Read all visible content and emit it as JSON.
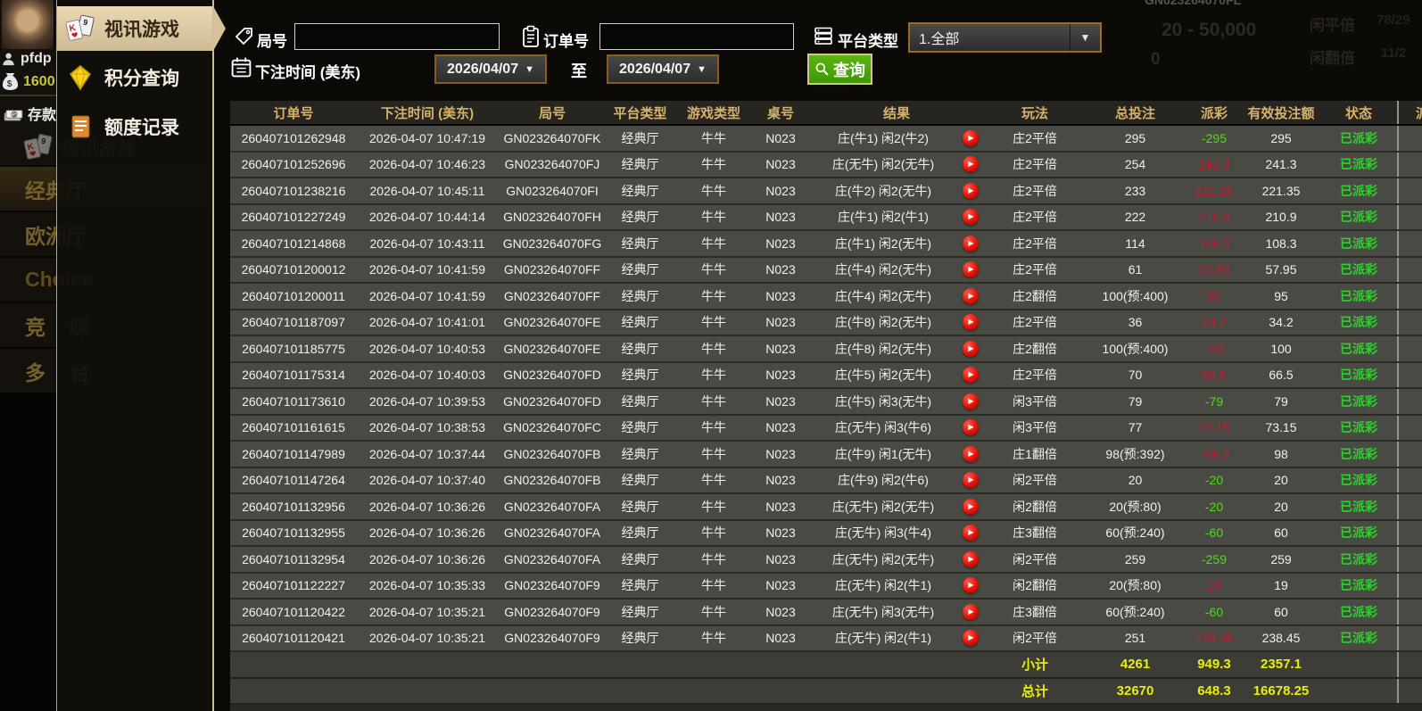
{
  "sidebar": {
    "username": "pfdp",
    "balance": "1600",
    "deposit_label": "存款",
    "video_game_label": "视讯游戏",
    "halls": [
      "经典厅",
      "欧洲厅",
      "Choice",
      "竞咪",
      "多台"
    ]
  },
  "menu": {
    "items": [
      {
        "label": "视讯游戏",
        "icon": "cards",
        "active": true
      },
      {
        "label": "积分查询",
        "icon": "diamond",
        "active": false
      },
      {
        "label": "额度记录",
        "icon": "document",
        "active": false
      }
    ]
  },
  "filters": {
    "round_label": "局号",
    "round_value": "",
    "order_label": "订单号",
    "order_value": "",
    "platform_label": "平台类型",
    "platform_value": "1.全部",
    "bet_time_label": "下注时间 (美东)",
    "date_from": "2026/04/07",
    "date_to": "2026/04/07",
    "to_label": "至",
    "query_label": "查询",
    "dropdown_arrow": "▼"
  },
  "background_hints": {
    "top_round_id": "GN023264070FL",
    "limit_text": "20 - 50,000",
    "zero_text": "0",
    "side_label_1": "闲平倍",
    "side_value_1": "78/29",
    "side_label_2": "闲翻倍",
    "side_value_2": "11/2"
  },
  "table": {
    "headers": [
      "订单号",
      "下注时间 (美东)",
      "局号",
      "平台类型",
      "游戏类型",
      "桌号",
      "结果",
      "玩法",
      "总投注",
      "派彩",
      "有效投注额",
      "状态",
      "派"
    ],
    "rows": [
      {
        "order_id": "260407101262948",
        "bet_time": "2026-04-07 10:47:19",
        "round_id": "GN023264070FK",
        "platform": "经典厅",
        "game_type": "牛牛",
        "table_no": "N023",
        "result": "庄(牛1) 闲2(牛2)",
        "play_method": "庄2平倍",
        "total_bet": "295",
        "payout": "-295",
        "valid_bet": "295",
        "status": "已派彩"
      },
      {
        "order_id": "260407101252696",
        "bet_time": "2026-04-07 10:46:23",
        "round_id": "GN023264070FJ",
        "platform": "经典厅",
        "game_type": "牛牛",
        "table_no": "N023",
        "result": "庄(无牛) 闲2(无牛)",
        "play_method": "庄2平倍",
        "total_bet": "254",
        "payout": "241.3",
        "valid_bet": "241.3",
        "status": "已派彩"
      },
      {
        "order_id": "260407101238216",
        "bet_time": "2026-04-07 10:45:11",
        "round_id": "GN023264070FI",
        "platform": "经典厅",
        "game_type": "牛牛",
        "table_no": "N023",
        "result": "庄(牛2) 闲2(无牛)",
        "play_method": "庄2平倍",
        "total_bet": "233",
        "payout": "221.35",
        "valid_bet": "221.35",
        "status": "已派彩"
      },
      {
        "order_id": "260407101227249",
        "bet_time": "2026-04-07 10:44:14",
        "round_id": "GN023264070FH",
        "platform": "经典厅",
        "game_type": "牛牛",
        "table_no": "N023",
        "result": "庄(牛1) 闲2(牛1)",
        "play_method": "庄2平倍",
        "total_bet": "222",
        "payout": "210.9",
        "valid_bet": "210.9",
        "status": "已派彩"
      },
      {
        "order_id": "260407101214868",
        "bet_time": "2026-04-07 10:43:11",
        "round_id": "GN023264070FG",
        "platform": "经典厅",
        "game_type": "牛牛",
        "table_no": "N023",
        "result": "庄(牛1) 闲2(无牛)",
        "play_method": "庄2平倍",
        "total_bet": "114",
        "payout": "108.3",
        "valid_bet": "108.3",
        "status": "已派彩"
      },
      {
        "order_id": "260407101200012",
        "bet_time": "2026-04-07 10:41:59",
        "round_id": "GN023264070FF",
        "platform": "经典厅",
        "game_type": "牛牛",
        "table_no": "N023",
        "result": "庄(牛4) 闲2(无牛)",
        "play_method": "庄2平倍",
        "total_bet": "61",
        "payout": "57.95",
        "valid_bet": "57.95",
        "status": "已派彩"
      },
      {
        "order_id": "260407101200011",
        "bet_time": "2026-04-07 10:41:59",
        "round_id": "GN023264070FF",
        "platform": "经典厅",
        "game_type": "牛牛",
        "table_no": "N023",
        "result": "庄(牛4) 闲2(无牛)",
        "play_method": "庄2翻倍",
        "total_bet": "100(预:400)",
        "payout": "95",
        "valid_bet": "95",
        "status": "已派彩"
      },
      {
        "order_id": "260407101187097",
        "bet_time": "2026-04-07 10:41:01",
        "round_id": "GN023264070FE",
        "platform": "经典厅",
        "game_type": "牛牛",
        "table_no": "N023",
        "result": "庄(牛8) 闲2(无牛)",
        "play_method": "庄2平倍",
        "total_bet": "36",
        "payout": "34.2",
        "valid_bet": "34.2",
        "status": "已派彩"
      },
      {
        "order_id": "260407101185775",
        "bet_time": "2026-04-07 10:40:53",
        "round_id": "GN023264070FE",
        "platform": "经典厅",
        "game_type": "牛牛",
        "table_no": "N023",
        "result": "庄(牛8) 闲2(无牛)",
        "play_method": "庄2翻倍",
        "total_bet": "100(预:400)",
        "payout": "190",
        "valid_bet": "100",
        "status": "已派彩"
      },
      {
        "order_id": "260407101175314",
        "bet_time": "2026-04-07 10:40:03",
        "round_id": "GN023264070FD",
        "platform": "经典厅",
        "game_type": "牛牛",
        "table_no": "N023",
        "result": "庄(牛5) 闲2(无牛)",
        "play_method": "庄2平倍",
        "total_bet": "70",
        "payout": "66.5",
        "valid_bet": "66.5",
        "status": "已派彩"
      },
      {
        "order_id": "260407101173610",
        "bet_time": "2026-04-07 10:39:53",
        "round_id": "GN023264070FD",
        "platform": "经典厅",
        "game_type": "牛牛",
        "table_no": "N023",
        "result": "庄(牛5) 闲3(无牛)",
        "play_method": "闲3平倍",
        "total_bet": "79",
        "payout": "-79",
        "valid_bet": "79",
        "status": "已派彩"
      },
      {
        "order_id": "260407101161615",
        "bet_time": "2026-04-07 10:38:53",
        "round_id": "GN023264070FC",
        "platform": "经典厅",
        "game_type": "牛牛",
        "table_no": "N023",
        "result": "庄(无牛) 闲3(牛6)",
        "play_method": "闲3平倍",
        "total_bet": "77",
        "payout": "73.15",
        "valid_bet": "73.15",
        "status": "已派彩"
      },
      {
        "order_id": "260407101147989",
        "bet_time": "2026-04-07 10:37:44",
        "round_id": "GN023264070FB",
        "platform": "经典厅",
        "game_type": "牛牛",
        "table_no": "N023",
        "result": "庄(牛9) 闲1(无牛)",
        "play_method": "庄1翻倍",
        "total_bet": "98(预:392)",
        "payout": "186.2",
        "valid_bet": "98",
        "status": "已派彩"
      },
      {
        "order_id": "260407101147264",
        "bet_time": "2026-04-07 10:37:40",
        "round_id": "GN023264070FB",
        "platform": "经典厅",
        "game_type": "牛牛",
        "table_no": "N023",
        "result": "庄(牛9) 闲2(牛6)",
        "play_method": "闲2平倍",
        "total_bet": "20",
        "payout": "-20",
        "valid_bet": "20",
        "status": "已派彩"
      },
      {
        "order_id": "260407101132956",
        "bet_time": "2026-04-07 10:36:26",
        "round_id": "GN023264070FA",
        "platform": "经典厅",
        "game_type": "牛牛",
        "table_no": "N023",
        "result": "庄(无牛) 闲2(无牛)",
        "play_method": "闲2翻倍",
        "total_bet": "20(预:80)",
        "payout": "-20",
        "valid_bet": "20",
        "status": "已派彩"
      },
      {
        "order_id": "260407101132955",
        "bet_time": "2026-04-07 10:36:26",
        "round_id": "GN023264070FA",
        "platform": "经典厅",
        "game_type": "牛牛",
        "table_no": "N023",
        "result": "庄(无牛) 闲3(牛4)",
        "play_method": "庄3翻倍",
        "total_bet": "60(预:240)",
        "payout": "-60",
        "valid_bet": "60",
        "status": "已派彩"
      },
      {
        "order_id": "260407101132954",
        "bet_time": "2026-04-07 10:36:26",
        "round_id": "GN023264070FA",
        "platform": "经典厅",
        "game_type": "牛牛",
        "table_no": "N023",
        "result": "庄(无牛) 闲2(无牛)",
        "play_method": "闲2平倍",
        "total_bet": "259",
        "payout": "-259",
        "valid_bet": "259",
        "status": "已派彩"
      },
      {
        "order_id": "260407101122227",
        "bet_time": "2026-04-07 10:35:33",
        "round_id": "GN023264070F9",
        "platform": "经典厅",
        "game_type": "牛牛",
        "table_no": "N023",
        "result": "庄(无牛) 闲2(牛1)",
        "play_method": "闲2翻倍",
        "total_bet": "20(预:80)",
        "payout": "19",
        "valid_bet": "19",
        "status": "已派彩"
      },
      {
        "order_id": "260407101120422",
        "bet_time": "2026-04-07 10:35:21",
        "round_id": "GN023264070F9",
        "platform": "经典厅",
        "game_type": "牛牛",
        "table_no": "N023",
        "result": "庄(无牛) 闲3(无牛)",
        "play_method": "庄3翻倍",
        "total_bet": "60(预:240)",
        "payout": "-60",
        "valid_bet": "60",
        "status": "已派彩"
      },
      {
        "order_id": "260407101120421",
        "bet_time": "2026-04-07 10:35:21",
        "round_id": "GN023264070F9",
        "platform": "经典厅",
        "game_type": "牛牛",
        "table_no": "N023",
        "result": "庄(无牛) 闲2(牛1)",
        "play_method": "闲2平倍",
        "total_bet": "251",
        "payout": "238.45",
        "valid_bet": "238.45",
        "status": "已派彩"
      }
    ],
    "subtotal": {
      "label": "小计",
      "total_bet": "4261",
      "payout": "949.3",
      "valid_bet": "2357.1"
    },
    "grand_total": {
      "label": "总计",
      "total_bet": "32670",
      "payout": "648.3",
      "valid_bet": "16678.25"
    }
  },
  "colors": {
    "header_gold": "#d6b26e",
    "positive_payout_red": "#c2182e",
    "negative_payout_green": "#49e00e",
    "status_green": "#2cd32c",
    "summary_yellow": "#e9ee0f",
    "query_button_green": "#3f9804",
    "active_menu_tan": "#dbc8a4",
    "row_gray": "#4a4a45"
  }
}
